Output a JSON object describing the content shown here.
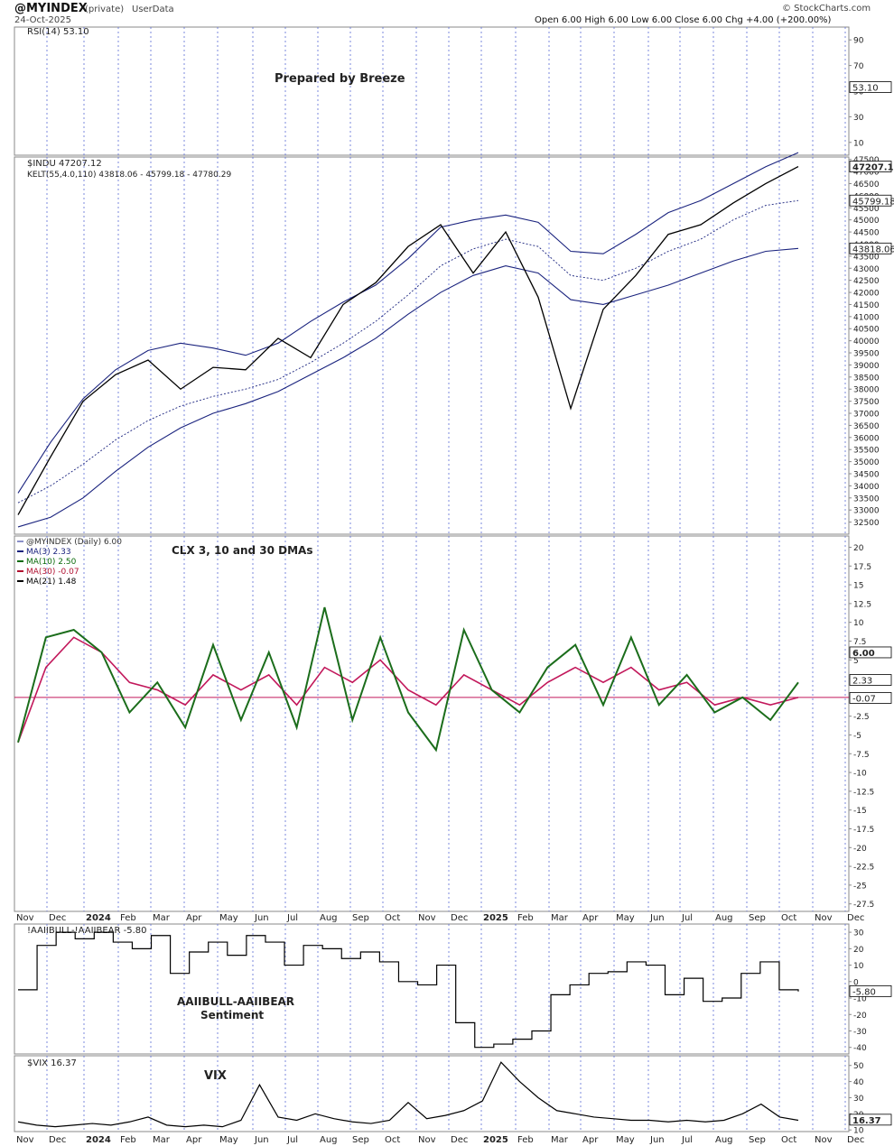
{
  "header": {
    "symbol": "@MYINDEX",
    "privacy": "(private)",
    "source": "UserData",
    "date": "24-Oct-2025",
    "ohlc": "Open 6.00  High 6.00  Low 6.00  Close 6.00  Chg +4.00 (+200.00%)",
    "watermark": "© StockCharts.com"
  },
  "chart_data": [
    {
      "type": "line",
      "panel": "rsi",
      "legend": "RSI(14) 53.10",
      "annotation": "Prepared by Breeze",
      "yticks": [
        10,
        30,
        50,
        70,
        90
      ],
      "ylim": [
        0,
        100
      ],
      "last_label": "53.10",
      "series": [
        {
          "name": "RSI(14)",
          "values": []
        }
      ]
    },
    {
      "type": "line",
      "panel": "price",
      "legend": [
        "$INDU 47207.12",
        "KELT(55,4.0,110) 43818.06 - 45799.18 - 47780.29"
      ],
      "yticks": [
        32500,
        33000,
        33500,
        34000,
        34500,
        35000,
        35500,
        36000,
        36500,
        37000,
        37500,
        38000,
        38500,
        39000,
        39500,
        40000,
        40500,
        41000,
        41500,
        42000,
        42500,
        43000,
        43500,
        44000,
        44500,
        45000,
        45500,
        46000,
        46500,
        47000,
        47500
      ],
      "ylim": [
        32000,
        47600
      ],
      "last_labels": [
        "47207.12",
        "45799.18",
        "43818.06"
      ],
      "x": [
        "2023-11",
        "2023-12",
        "2024-01",
        "2024-02",
        "2024-03",
        "2024-04",
        "2024-05",
        "2024-06",
        "2024-07",
        "2024-08",
        "2024-09",
        "2024-10",
        "2024-11",
        "2024-12",
        "2025-01",
        "2025-02",
        "2025-03",
        "2025-04",
        "2025-05",
        "2025-06",
        "2025-07",
        "2025-08",
        "2025-09",
        "2025-10",
        "2025-10-24"
      ],
      "series": [
        {
          "name": "$INDU",
          "values": [
            32800,
            35200,
            37500,
            38600,
            39200,
            38000,
            38900,
            38800,
            40100,
            39300,
            41500,
            42400,
            43900,
            44800,
            42800,
            44500,
            41800,
            37200,
            41300,
            42700,
            44400,
            44800,
            45700,
            46500,
            47207
          ]
        },
        {
          "name": "KELT upper",
          "values": [
            33700,
            35800,
            37600,
            38800,
            39600,
            39900,
            39700,
            39400,
            39900,
            40800,
            41600,
            42300,
            43400,
            44700,
            45000,
            45200,
            44900,
            43700,
            43600,
            44400,
            45300,
            45800,
            46500,
            47200,
            47780
          ]
        },
        {
          "name": "KELT middle",
          "values": [
            33300,
            34000,
            34900,
            35900,
            36700,
            37300,
            37700,
            38000,
            38400,
            39100,
            39900,
            40800,
            41900,
            43100,
            43800,
            44200,
            43900,
            42700,
            42500,
            43000,
            43700,
            44200,
            45000,
            45600,
            45799
          ]
        },
        {
          "name": "KELT lower",
          "values": [
            32300,
            32700,
            33500,
            34600,
            35600,
            36400,
            37000,
            37400,
            37900,
            38600,
            39300,
            40100,
            41100,
            42000,
            42700,
            43100,
            42800,
            41700,
            41500,
            41900,
            42300,
            42800,
            43300,
            43700,
            43818
          ]
        }
      ]
    },
    {
      "type": "line",
      "panel": "clx",
      "legend": [
        "@MYINDEX (Daily) 6.00",
        "MA(3) 2.33",
        "MA(10) 2.50",
        "MA(30) -0.07",
        "MA(21) 1.48"
      ],
      "annotation": "CLX 3, 10 and 30 DMAs",
      "yticks": [
        -27.5,
        -25,
        -22.5,
        -20,
        -17.5,
        -15,
        -12.5,
        -10,
        -7.5,
        -5,
        -2.5,
        0,
        2.5,
        5,
        7.5,
        10,
        12.5,
        15,
        17.5,
        20
      ],
      "ylim": [
        -28.5,
        21.5
      ],
      "last_labels": [
        "6.00",
        "2.33",
        "1.48",
        "-0.07"
      ],
      "x_axis": [
        "Nov",
        "Dec",
        "2024",
        "Feb",
        "Mar",
        "Apr",
        "May",
        "Jun",
        "Jul",
        "Aug",
        "Sep",
        "Oct",
        "Nov",
        "Dec",
        "2025",
        "Feb",
        "Mar",
        "Apr",
        "May",
        "Jun",
        "Jul",
        "Aug",
        "Sep",
        "Oct",
        "Nov",
        "Dec"
      ],
      "series": [
        {
          "name": "MA(10)",
          "values": [
            -6,
            8,
            9,
            6,
            -2,
            2,
            -4,
            7,
            -3,
            6,
            -4,
            12,
            -3,
            8,
            -2,
            -7,
            9,
            1,
            -2,
            4,
            7,
            -1,
            8,
            -1,
            3,
            -2,
            0,
            -3,
            2
          ]
        },
        {
          "name": "MA(30)",
          "values": [
            -6,
            4,
            8,
            6,
            2,
            1,
            -1,
            3,
            1,
            3,
            -1,
            4,
            2,
            5,
            1,
            -1,
            3,
            1,
            -1,
            2,
            4,
            2,
            4,
            1,
            2,
            -1,
            0,
            -1,
            0
          ]
        }
      ]
    },
    {
      "type": "line",
      "panel": "sentiment",
      "legend": "!AAIIBULL-!AAIIBEAR -5.80",
      "annotation": [
        "AAIIBULL-AAIIBEAR",
        "Sentiment"
      ],
      "yticks": [
        -40,
        -30,
        -20,
        -10,
        0,
        10,
        20,
        30
      ],
      "ylim": [
        -44,
        35
      ],
      "last_label": "-5.80",
      "series": [
        {
          "name": "!AAIIBULL-!AAIIBEAR",
          "values": [
            -5,
            22,
            30,
            26,
            30,
            24,
            20,
            28,
            5,
            18,
            24,
            16,
            28,
            24,
            10,
            22,
            20,
            14,
            18,
            12,
            0,
            -2,
            10,
            -25,
            -40,
            -38,
            -35,
            -30,
            -8,
            -2,
            5,
            6,
            12,
            10,
            -8,
            2,
            -12,
            -10,
            5,
            12,
            -5,
            -6
          ]
        }
      ]
    },
    {
      "type": "line",
      "panel": "vix",
      "legend": "$VIX 16.37",
      "annotation": "VIX",
      "yticks": [
        10,
        20,
        30,
        40,
        50
      ],
      "ylim": [
        9,
        56
      ],
      "last_label": "16.37",
      "x_axis": [
        "Nov",
        "Dec",
        "2024",
        "Feb",
        "Mar",
        "Apr",
        "May",
        "Jun",
        "Jul",
        "Aug",
        "Sep",
        "Oct",
        "Nov",
        "Dec",
        "2025",
        "Feb",
        "Mar",
        "Apr",
        "May",
        "Jun",
        "Jul",
        "Aug",
        "Sep",
        "Oct",
        "Nov",
        "Dec"
      ],
      "series": [
        {
          "name": "$VIX",
          "values": [
            15,
            13,
            12,
            13,
            14,
            13,
            15,
            18,
            13,
            12,
            13,
            12,
            16,
            38,
            18,
            16,
            20,
            17,
            15,
            14,
            16,
            27,
            17,
            19,
            22,
            28,
            52,
            40,
            30,
            22,
            20,
            18,
            17,
            16,
            16,
            15,
            16,
            15,
            16,
            20,
            26,
            18,
            16
          ]
        }
      ]
    }
  ]
}
